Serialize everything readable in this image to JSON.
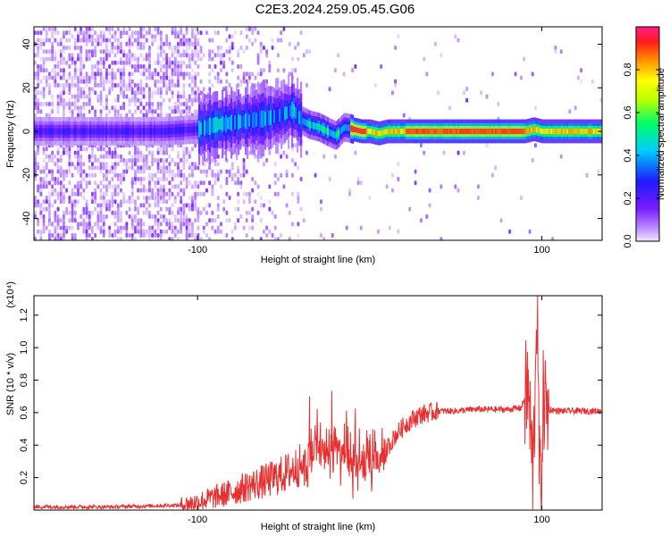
{
  "page": {
    "title": "C2E3.2024.259.05.45.G06"
  },
  "chart_data": [
    {
      "type": "heatmap",
      "title": "C2E3.2024.259.05.45.G06",
      "xlabel": "Height of straight line (km)",
      "ylabel": "Frequency (Hz)",
      "xlim": [
        -195,
        135
      ],
      "ylim": [
        -50,
        48
      ],
      "xticks": [
        -100,
        100
      ],
      "yticks": [
        -40,
        -20,
        0,
        20,
        40
      ],
      "colorbar": {
        "label": "Normalized spectral amplitude",
        "range": [
          0,
          1
        ],
        "ticks": [
          "0.0",
          "0.2",
          "0.4",
          "0.6",
          "0.8"
        ],
        "tick_values": [
          0.0,
          0.2,
          0.4,
          0.6,
          0.8
        ]
      },
      "ridge": {
        "x": [
          -195,
          -150,
          -120,
          -100,
          -90,
          -80,
          -70,
          -60,
          -50,
          -45,
          -40,
          -35,
          -30,
          -25,
          -20,
          -15,
          -10,
          -5,
          0,
          5,
          10,
          20,
          40,
          60,
          80,
          90,
          95,
          100,
          110,
          120,
          135
        ],
        "y": [
          0,
          0,
          0,
          1,
          3,
          4,
          5,
          6,
          8,
          10,
          5,
          3,
          2,
          0,
          -2,
          2,
          1,
          0,
          0,
          -1,
          0,
          0,
          0,
          0,
          0,
          0,
          1,
          0,
          0,
          0,
          0
        ]
      }
    },
    {
      "type": "line",
      "xlabel": "Height of straight line (km)",
      "ylabel": "SNR (10 * v/v)",
      "yscale_label": "(x10⁴)",
      "xlim": [
        -195,
        135
      ],
      "ylim": [
        0,
        1.32
      ],
      "xticks": [
        -100,
        100
      ],
      "yticks": [
        0.2,
        0.4,
        0.6,
        0.8,
        1.0,
        1.2
      ],
      "ytick_labels": [
        "0.2",
        "0.4",
        "0.6",
        "0.8",
        "1.0",
        "1.2"
      ],
      "color": "#e83030",
      "series": [
        {
          "x": [
            -195,
            -150,
            -110,
            -100,
            -90,
            -80,
            -70,
            -60,
            -50,
            -40,
            -35,
            -30,
            -25,
            -20,
            -15,
            -10,
            -5,
            0,
            5,
            10,
            15,
            20,
            25,
            30,
            40,
            50,
            60,
            70,
            80,
            88,
            92,
            95,
            97,
            99,
            101,
            103,
            110,
            120,
            135
          ],
          "y": [
            0.02,
            0.02,
            0.03,
            0.05,
            0.08,
            0.11,
            0.15,
            0.18,
            0.22,
            0.28,
            0.35,
            0.42,
            0.36,
            0.38,
            0.32,
            0.28,
            0.3,
            0.28,
            0.3,
            0.38,
            0.46,
            0.52,
            0.56,
            0.59,
            0.61,
            0.61,
            0.62,
            0.62,
            0.62,
            0.63,
            0.75,
            0.2,
            1.3,
            0.05,
            0.7,
            0.62,
            0.61,
            0.61,
            0.61
          ]
        }
      ]
    }
  ]
}
